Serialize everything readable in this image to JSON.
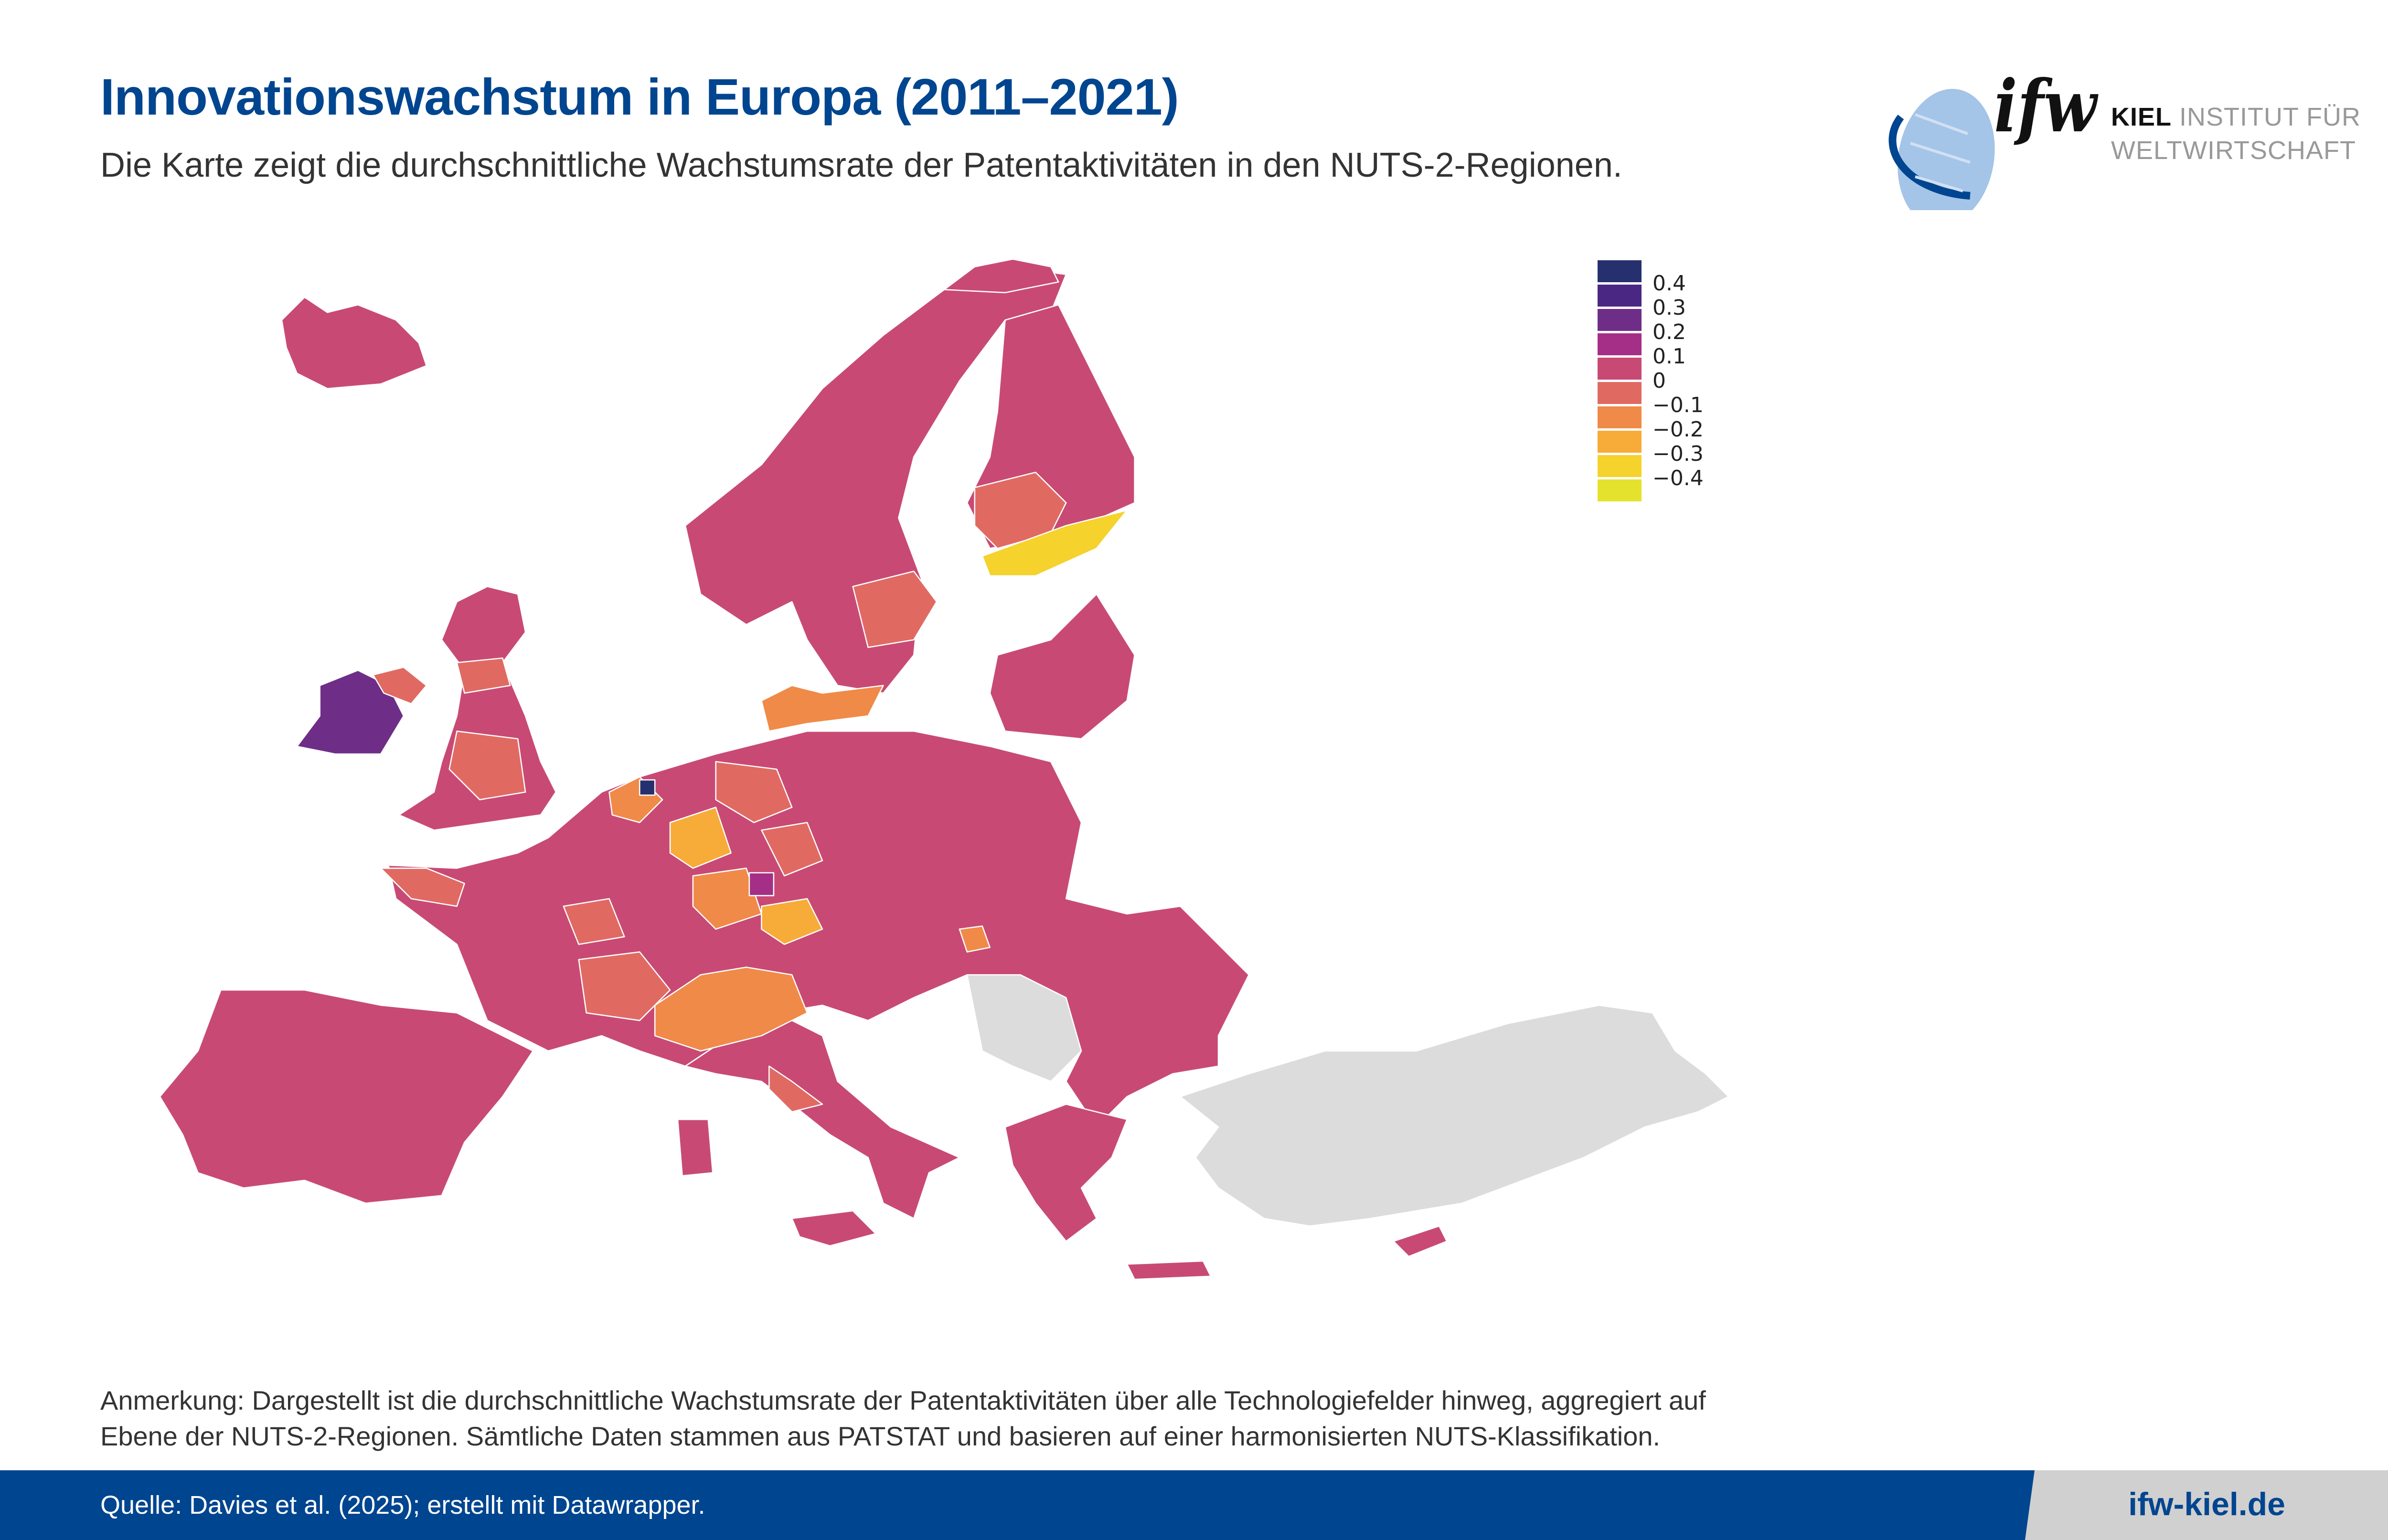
{
  "header": {
    "title": "Innovationswachstum in Europa (2011–2021)",
    "subtitle": "Die Karte zeigt die durchschnittliche Wachstumsrate der Patentaktivitäten in den NUTS-2-Regionen."
  },
  "logo": {
    "mark": "ifw",
    "line1_bold": "KIEL",
    "line1_rest": "INSTITUT FÜR",
    "line2": "WELTWIRTSCHAFT"
  },
  "chart_data": {
    "type": "choropleth",
    "title": "Innovationswachstum in Europa (2011–2021)",
    "unit": "durchschnittliche Wachstumsrate der Patentaktivitäten",
    "legend": {
      "labels": [
        "0.4",
        "0.3",
        "0.2",
        "0.1",
        "0",
        "−0.1",
        "−0.2",
        "−0.3",
        "−0.4"
      ],
      "colors": [
        "#27306e",
        "#4a2783",
        "#6e2e87",
        "#a52f86",
        "#c84a74",
        "#e06a62",
        "#f08a48",
        "#f7ab38",
        "#f5d22c",
        "#e4e22c"
      ],
      "placement": "top-right"
    },
    "no_data_color": "#dcdcdc"
  },
  "note": {
    "line1": "Anmerkung: Dargestellt ist die durchschnittliche Wachstumsrate der Patentaktivitäten über alle Technologiefelder hinweg, aggregiert auf",
    "line2": "Ebene der NUTS-2-Regionen. Sämtliche Daten stammen aus PATSTAT und basieren auf einer harmonisierten NUTS-Klassifikation."
  },
  "footer": {
    "source": "Quelle: Davies et al. (2025); erstellt mit Datawrapper.",
    "website": "ifw-kiel.de"
  }
}
